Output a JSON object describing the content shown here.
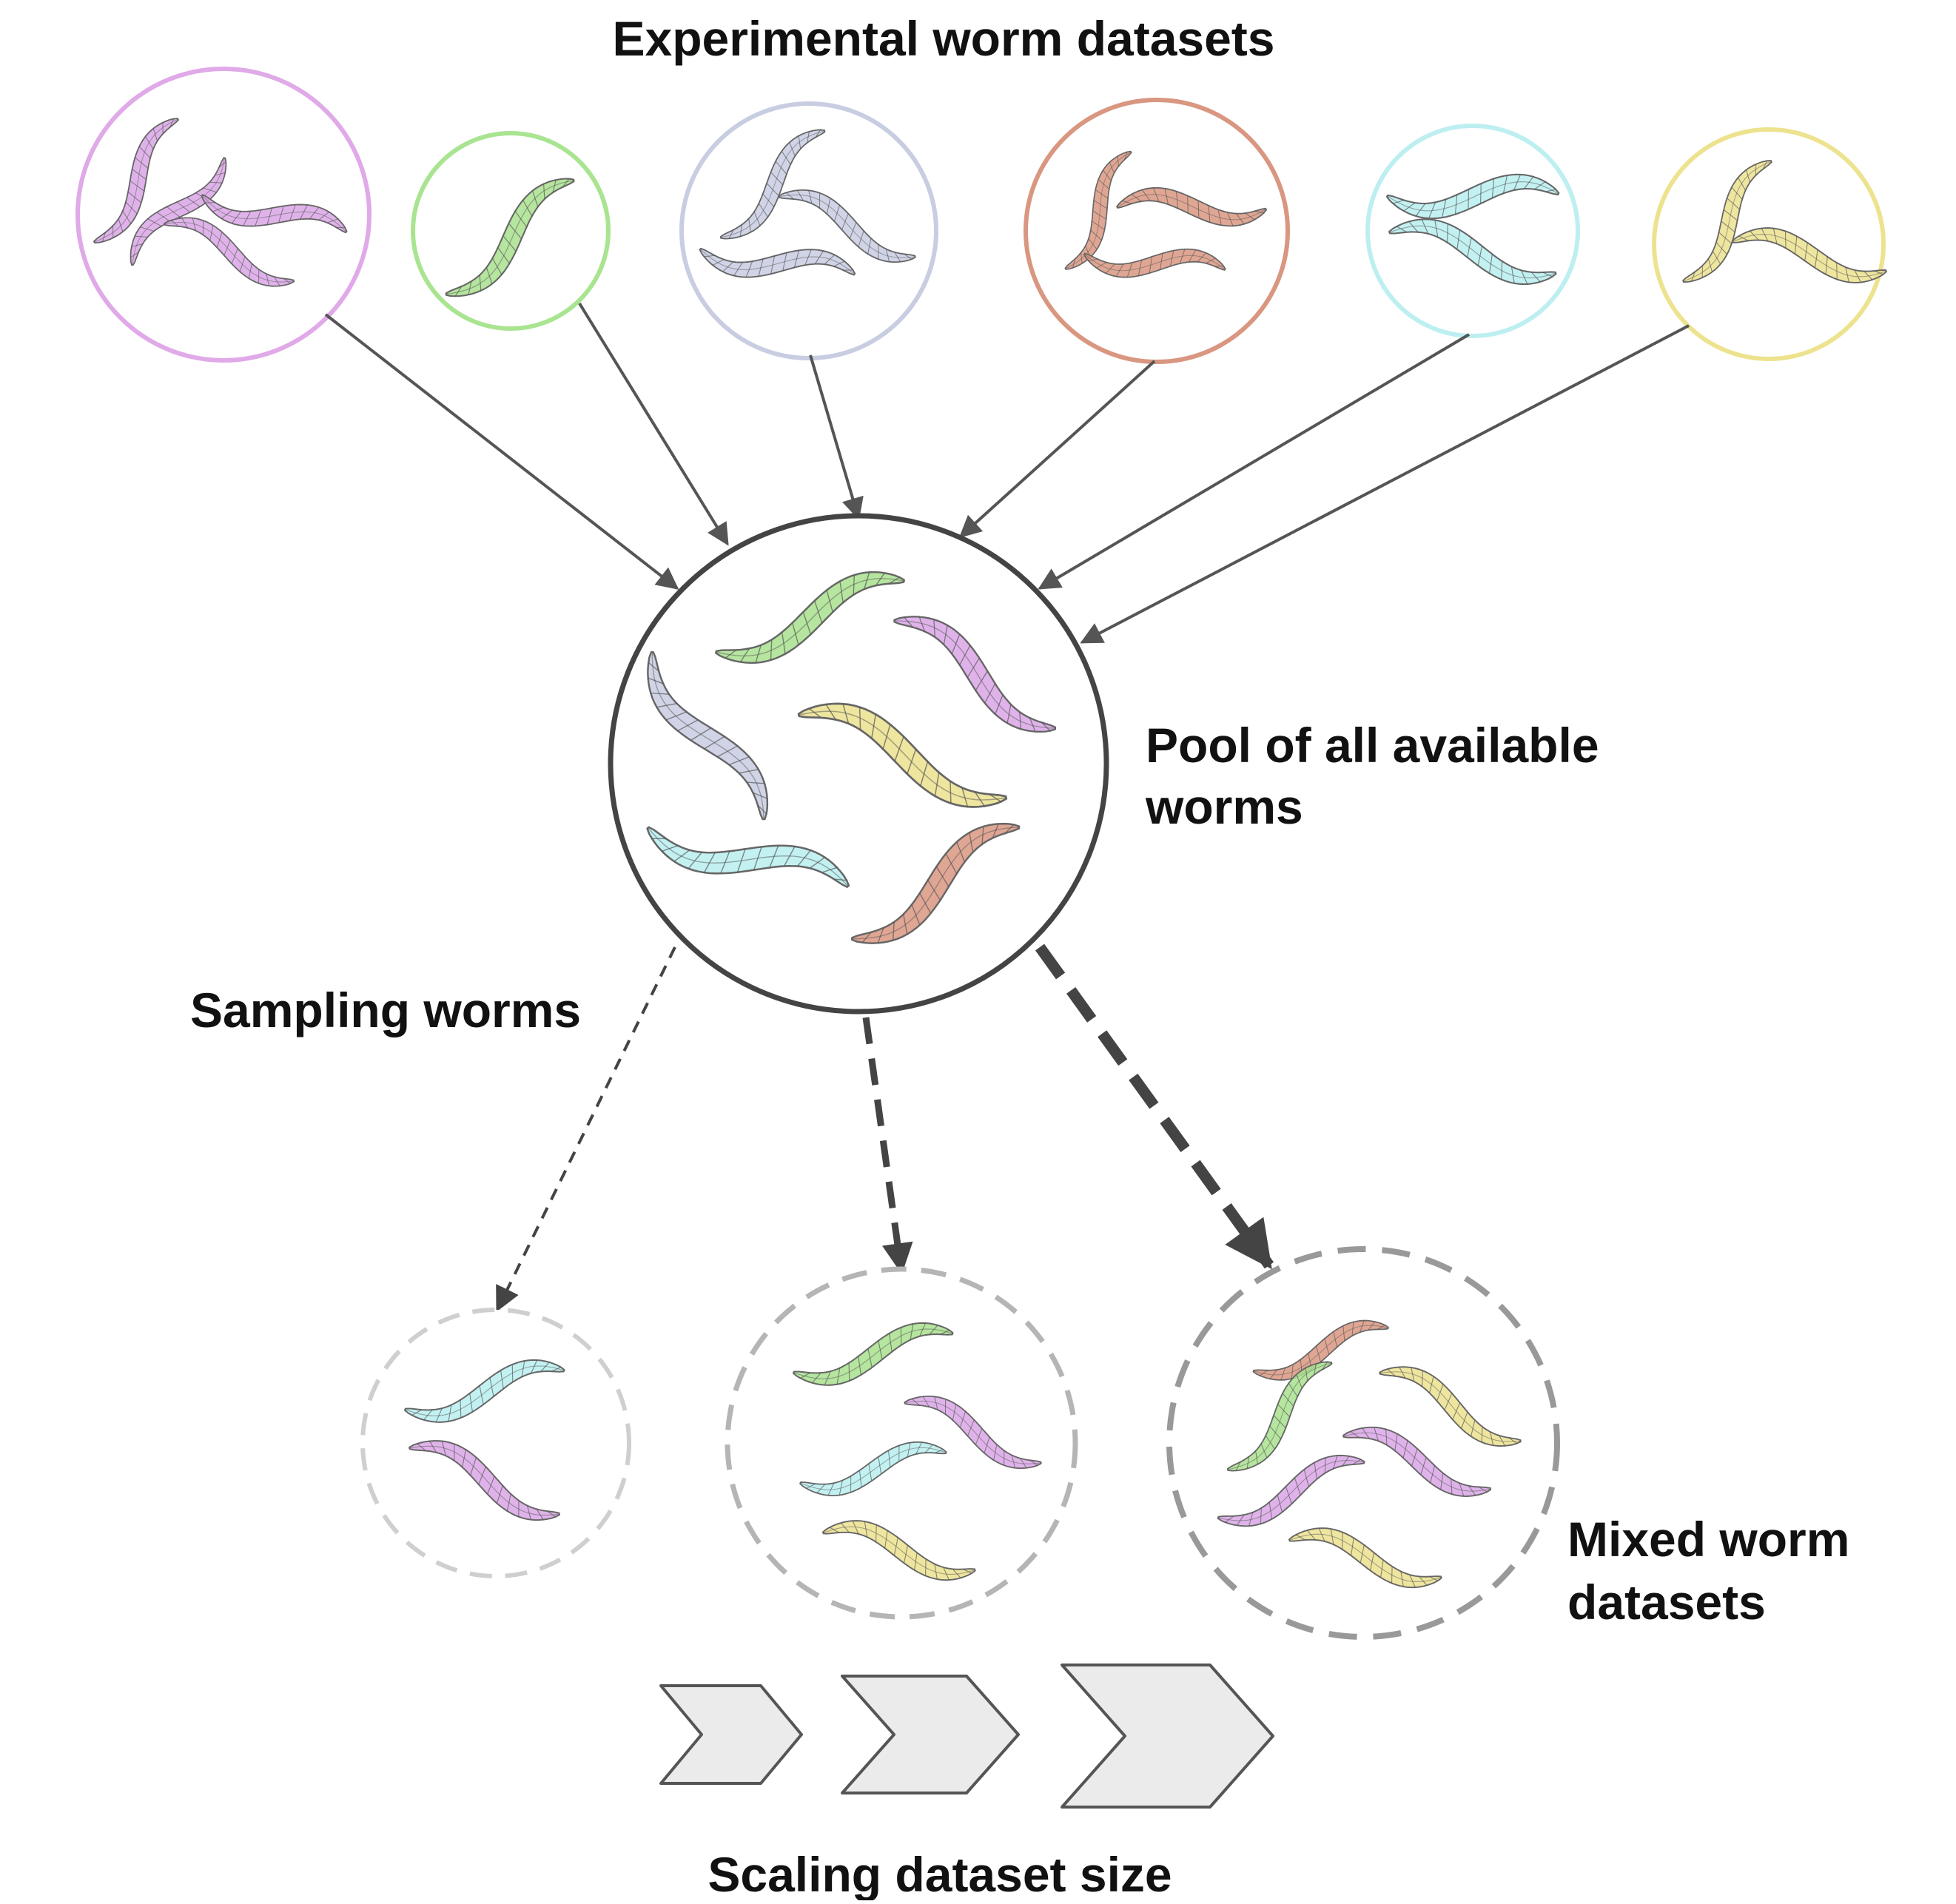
{
  "labels": {
    "title": "Experimental worm datasets",
    "pool_line1": "Pool of all available",
    "pool_line2": "worms",
    "sampling": "Sampling worms",
    "mixed_line1": "Mixed worm",
    "mixed_line2": "datasets",
    "scaling": "Scaling dataset size"
  },
  "colors": {
    "purple": "#d9a6e6",
    "green": "#a8e08d",
    "lavender": "#c8cde2",
    "salmon": "#d99680",
    "cyan": "#b8eef0",
    "yellow": "#ebe18e"
  },
  "experimental_datasets": [
    {
      "name": "dataset-purple",
      "color": "purple",
      "worms": 4
    },
    {
      "name": "dataset-green",
      "color": "green",
      "worms": 1
    },
    {
      "name": "dataset-lavender",
      "color": "lavender",
      "worms": 3
    },
    {
      "name": "dataset-salmon",
      "color": "salmon",
      "worms": 3
    },
    {
      "name": "dataset-cyan",
      "color": "cyan",
      "worms": 2
    },
    {
      "name": "dataset-yellow",
      "color": "yellow",
      "worms": 2
    }
  ],
  "pool_worm_colors": [
    "green",
    "purple",
    "lavender",
    "yellow",
    "cyan",
    "salmon"
  ],
  "mixed_datasets": [
    {
      "name": "mixed-small",
      "worm_colors": [
        "cyan",
        "purple"
      ]
    },
    {
      "name": "mixed-medium",
      "worm_colors": [
        "green",
        "purple",
        "cyan",
        "yellow"
      ]
    },
    {
      "name": "mixed-large",
      "worm_colors": [
        "salmon",
        "green",
        "yellow",
        "purple",
        "purple",
        "yellow"
      ]
    }
  ],
  "icons": [
    "worm-icon",
    "chevron-arrow-icon"
  ]
}
